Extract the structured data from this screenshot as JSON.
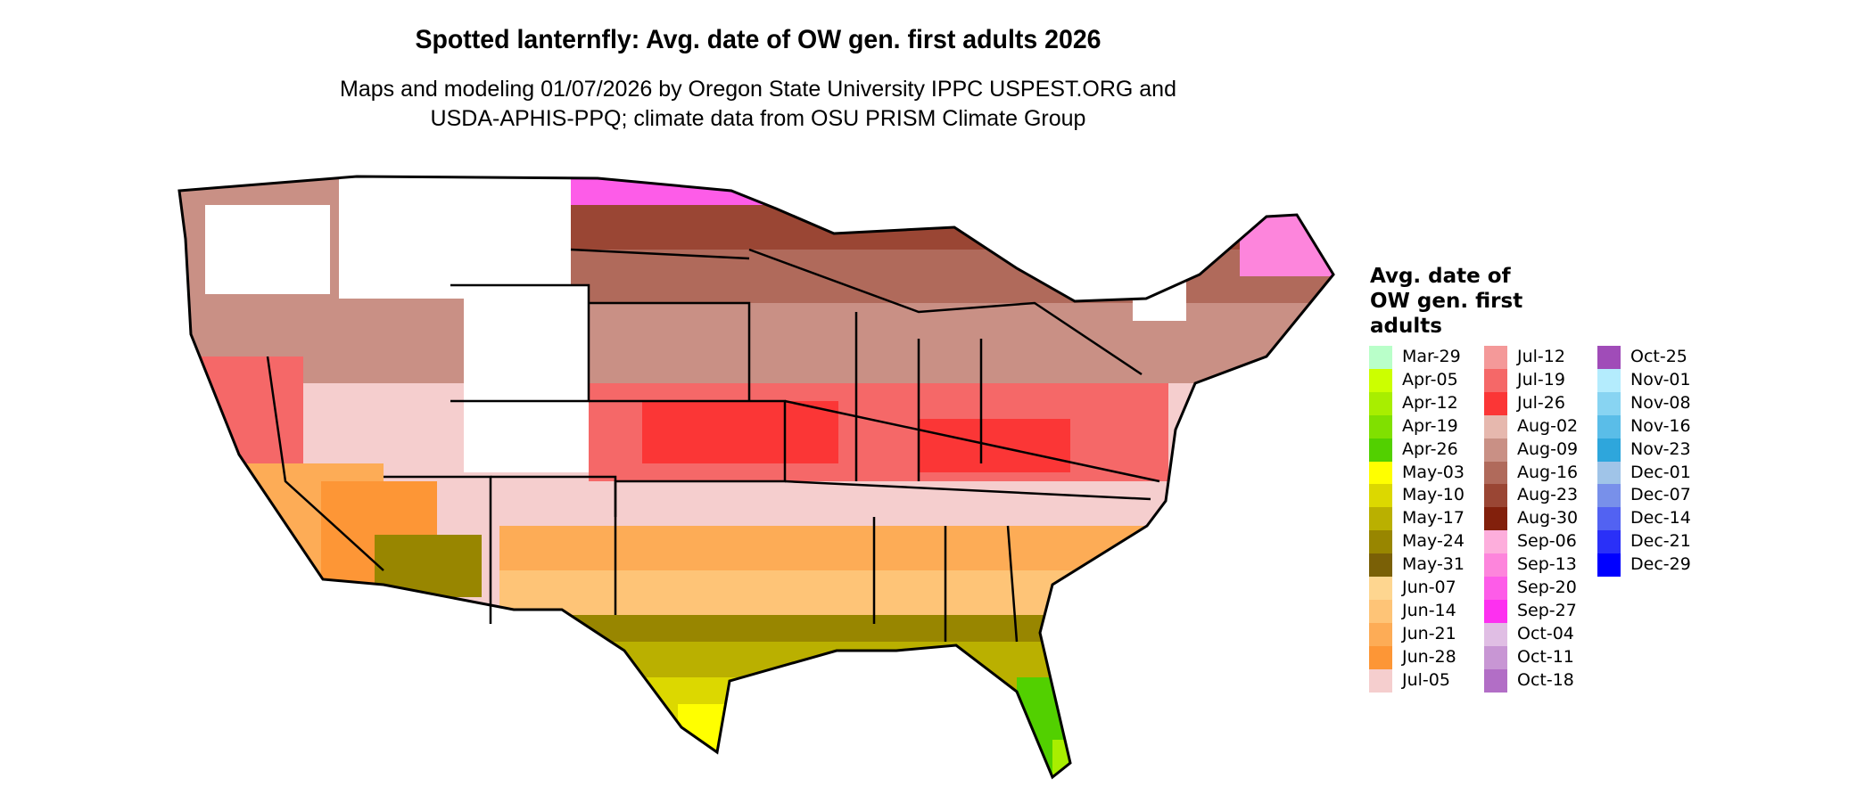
{
  "title": "Spotted lanternfly: Avg. date of OW gen. first adults 2026",
  "subtitle_line1": "Maps and modeling 01/07/2026 by Oregon State University IPPC USPEST.ORG and",
  "subtitle_line2": "USDA-APHIS-PPQ; climate data from OSU PRISM Climate Group",
  "legend": {
    "title_lines": [
      "Avg. date of",
      "OW gen. first",
      "adults"
    ],
    "items": [
      {
        "label": "Mar-29",
        "color": "#b9ffc9"
      },
      {
        "label": "Apr-05",
        "color": "#ccff00"
      },
      {
        "label": "Apr-12",
        "color": "#a8ee00"
      },
      {
        "label": "Apr-19",
        "color": "#80e000"
      },
      {
        "label": "Apr-26",
        "color": "#52d000"
      },
      {
        "label": "May-03",
        "color": "#ffff00"
      },
      {
        "label": "May-10",
        "color": "#dcd800"
      },
      {
        "label": "May-17",
        "color": "#bab000"
      },
      {
        "label": "May-24",
        "color": "#988600"
      },
      {
        "label": "May-31",
        "color": "#7a6006"
      },
      {
        "label": "Jun-07",
        "color": "#fed690"
      },
      {
        "label": "Jun-14",
        "color": "#fec477"
      },
      {
        "label": "Jun-21",
        "color": "#fdac56"
      },
      {
        "label": "Jun-28",
        "color": "#fd9636"
      },
      {
        "label": "Jul-05",
        "color": "#f5cece"
      },
      {
        "label": "Jul-12",
        "color": "#f49999"
      },
      {
        "label": "Jul-19",
        "color": "#f56868"
      },
      {
        "label": "Jul-26",
        "color": "#fb3636"
      },
      {
        "label": "Aug-02",
        "color": "#e6b8ae"
      },
      {
        "label": "Aug-09",
        "color": "#c99085"
      },
      {
        "label": "Aug-16",
        "color": "#b06a5b"
      },
      {
        "label": "Aug-23",
        "color": "#9a4634"
      },
      {
        "label": "Aug-30",
        "color": "#82200c"
      },
      {
        "label": "Sep-06",
        "color": "#fdaedc"
      },
      {
        "label": "Sep-13",
        "color": "#fd85dc"
      },
      {
        "label": "Sep-20",
        "color": "#fd5ce8"
      },
      {
        "label": "Sep-27",
        "color": "#fd30f0"
      },
      {
        "label": "Oct-04",
        "color": "#e0bee4"
      },
      {
        "label": "Oct-11",
        "color": "#c896d4"
      },
      {
        "label": "Oct-18",
        "color": "#b26ec6"
      },
      {
        "label": "Oct-25",
        "color": "#a04cb8"
      },
      {
        "label": "Nov-01",
        "color": "#b4ecfd"
      },
      {
        "label": "Nov-08",
        "color": "#88d4f2"
      },
      {
        "label": "Nov-16",
        "color": "#5abde8"
      },
      {
        "label": "Nov-23",
        "color": "#2ea6dc"
      },
      {
        "label": "Dec-01",
        "color": "#a0c4e8"
      },
      {
        "label": "Dec-07",
        "color": "#7890ea"
      },
      {
        "label": "Dec-14",
        "color": "#5262f2"
      },
      {
        "label": "Dec-21",
        "color": "#2a30f8"
      },
      {
        "label": "Dec-29",
        "color": "#0000ff"
      }
    ]
  }
}
